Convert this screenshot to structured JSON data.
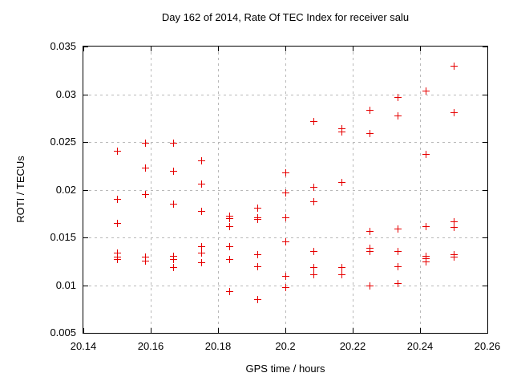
{
  "chart_data": {
    "type": "scatter",
    "title": "Day 162 of 2014, Rate Of TEC Index for receiver salu",
    "xlabel": "GPS time / hours",
    "ylabel": "ROTI / TECUs",
    "xlim": [
      20.14,
      20.26
    ],
    "ylim": [
      0.005,
      0.035
    ],
    "grid": true,
    "legend": false,
    "marker": "plus",
    "marker_color": "#e60000",
    "grid_color": "#b9b9b9",
    "xticks": [
      {
        "v": 20.14,
        "label": "20.14"
      },
      {
        "v": 20.16,
        "label": "20.16"
      },
      {
        "v": 20.18,
        "label": "20.18"
      },
      {
        "v": 20.2,
        "label": "20.2"
      },
      {
        "v": 20.22,
        "label": "20.22"
      },
      {
        "v": 20.24,
        "label": "20.24"
      },
      {
        "v": 20.26,
        "label": "20.26"
      }
    ],
    "yticks": [
      {
        "v": 0.005,
        "label": "0.005"
      },
      {
        "v": 0.01,
        "label": "0.01"
      },
      {
        "v": 0.015,
        "label": "0.015"
      },
      {
        "v": 0.02,
        "label": "0.02"
      },
      {
        "v": 0.025,
        "label": "0.025"
      },
      {
        "v": 0.03,
        "label": "0.03"
      },
      {
        "v": 0.035,
        "label": "0.035"
      }
    ],
    "series": [
      {
        "name": "ROTI",
        "points": [
          [
            20.15,
            0.0241
          ],
          [
            20.15,
            0.019
          ],
          [
            20.15,
            0.0165
          ],
          [
            20.15,
            0.0134
          ],
          [
            20.15,
            0.013
          ],
          [
            20.15,
            0.0127
          ],
          [
            20.1583,
            0.0249
          ],
          [
            20.1583,
            0.0223
          ],
          [
            20.1583,
            0.0195
          ],
          [
            20.1583,
            0.013
          ],
          [
            20.1583,
            0.0126
          ],
          [
            20.1667,
            0.0249
          ],
          [
            20.1667,
            0.022
          ],
          [
            20.1667,
            0.0185
          ],
          [
            20.1667,
            0.0131
          ],
          [
            20.1667,
            0.0127
          ],
          [
            20.1667,
            0.0119
          ],
          [
            20.175,
            0.0231
          ],
          [
            20.175,
            0.0206
          ],
          [
            20.175,
            0.0178
          ],
          [
            20.175,
            0.0141
          ],
          [
            20.175,
            0.0134
          ],
          [
            20.175,
            0.0124
          ],
          [
            20.1833,
            0.0173
          ],
          [
            20.1833,
            0.017
          ],
          [
            20.1833,
            0.0162
          ],
          [
            20.1833,
            0.0141
          ],
          [
            20.1833,
            0.0127
          ],
          [
            20.1833,
            0.0094
          ],
          [
            20.1917,
            0.0181
          ],
          [
            20.1917,
            0.0171
          ],
          [
            20.1917,
            0.0169
          ],
          [
            20.1917,
            0.0132
          ],
          [
            20.1917,
            0.012
          ],
          [
            20.1917,
            0.0085
          ],
          [
            20.2,
            0.0218
          ],
          [
            20.2,
            0.0197
          ],
          [
            20.2,
            0.0171
          ],
          [
            20.2,
            0.0146
          ],
          [
            20.2,
            0.011
          ],
          [
            20.2,
            0.0098
          ],
          [
            20.2083,
            0.0272
          ],
          [
            20.2083,
            0.0203
          ],
          [
            20.2083,
            0.0188
          ],
          [
            20.2083,
            0.0136
          ],
          [
            20.2083,
            0.0119
          ],
          [
            20.2083,
            0.0111
          ],
          [
            20.2167,
            0.0264
          ],
          [
            20.2167,
            0.0261
          ],
          [
            20.2167,
            0.0208
          ],
          [
            20.2167,
            0.0119
          ],
          [
            20.2167,
            0.0111
          ],
          [
            20.225,
            0.0284
          ],
          [
            20.225,
            0.0259
          ],
          [
            20.225,
            0.0157
          ],
          [
            20.225,
            0.0139
          ],
          [
            20.225,
            0.0136
          ],
          [
            20.225,
            0.01
          ],
          [
            20.2333,
            0.0297
          ],
          [
            20.2333,
            0.0278
          ],
          [
            20.2333,
            0.0159
          ],
          [
            20.2333,
            0.0136
          ],
          [
            20.2333,
            0.012
          ],
          [
            20.2333,
            0.0102
          ],
          [
            20.2417,
            0.0304
          ],
          [
            20.2417,
            0.0237
          ],
          [
            20.2417,
            0.0162
          ],
          [
            20.2417,
            0.0131
          ],
          [
            20.2417,
            0.0128
          ],
          [
            20.2417,
            0.0125
          ],
          [
            20.25,
            0.033
          ],
          [
            20.25,
            0.0281
          ],
          [
            20.25,
            0.0167
          ],
          [
            20.25,
            0.0161
          ],
          [
            20.25,
            0.0132
          ],
          [
            20.25,
            0.013
          ]
        ]
      }
    ]
  }
}
